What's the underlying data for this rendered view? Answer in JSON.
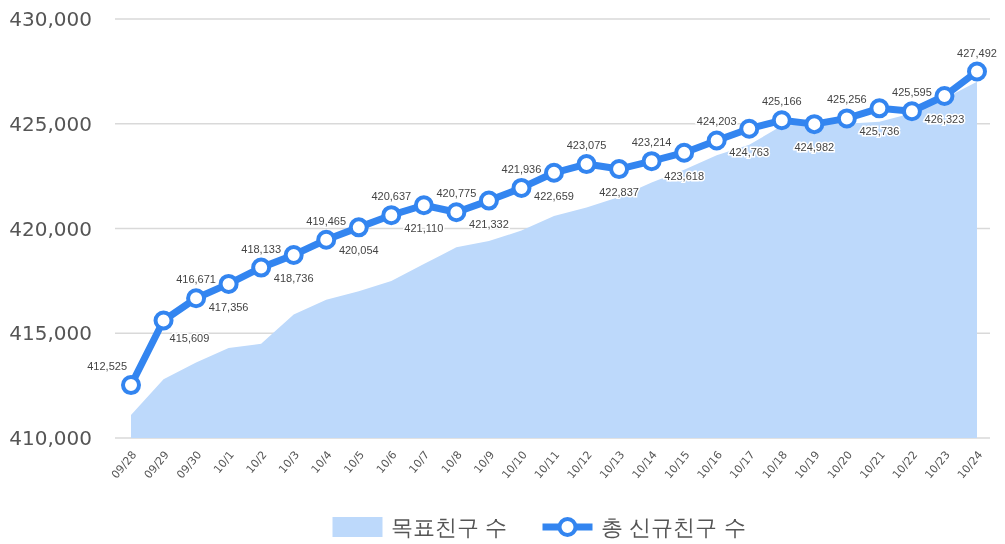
{
  "chart_data": {
    "type": "line",
    "categories": [
      "09/28",
      "09/29",
      "09/30",
      "10/1",
      "10/2",
      "10/3",
      "10/4",
      "10/5",
      "10/6",
      "10/7",
      "10/8",
      "10/9",
      "10/10",
      "10/11",
      "10/12",
      "10/13",
      "10/14",
      "10/15",
      "10/16",
      "10/17",
      "10/18",
      "10/19",
      "10/20",
      "10/21",
      "10/22",
      "10/23",
      "10/24"
    ],
    "series": [
      {
        "name": "목표친구 수",
        "type": "area",
        "color": "#bdd9fb",
        "values": [
          411100,
          412800,
          413600,
          414300,
          414500,
          415900,
          416600,
          417000,
          417500,
          418300,
          419100,
          419400,
          419900,
          420600,
          421000,
          421500,
          422200,
          422800,
          423500,
          424000,
          424900,
          425000,
          425000,
          425100,
          425500,
          426200,
          427000
        ]
      },
      {
        "name": "총 신규친구 수",
        "type": "line",
        "color": "#3385f0",
        "marker": "circle",
        "line_style": "solid",
        "values": [
          412525,
          415609,
          416671,
          417356,
          418133,
          418736,
          419465,
          420054,
          420637,
          421110,
          420775,
          421332,
          421936,
          422659,
          423075,
          422837,
          423214,
          423618,
          424203,
          424763,
          425166,
          424982,
          425256,
          425736,
          425595,
          426323,
          427492
        ],
        "value_labels": [
          "412,525",
          "415,609",
          "416,671",
          "417,356",
          "418,133",
          "418,736",
          "419,465",
          "420,054",
          "420,637",
          "421,110",
          "420,775",
          "421,332",
          "421,936",
          "422,659",
          "423,075",
          "422,837",
          "423,214",
          "423,618",
          "424,203",
          "424,763",
          "425,166",
          "424,982",
          "425,256",
          "425,736",
          "425,595",
          "426,323",
          "427,492"
        ]
      }
    ],
    "ylim": [
      410000,
      430000
    ],
    "yticks": [
      {
        "value": 410000,
        "label": "410,000"
      },
      {
        "value": 415000,
        "label": "415,000"
      },
      {
        "value": 420000,
        "label": "420,000"
      },
      {
        "value": 425000,
        "label": "425,000"
      },
      {
        "value": 430000,
        "label": "430,000"
      }
    ],
    "grid": "y",
    "legend": "bottom"
  }
}
